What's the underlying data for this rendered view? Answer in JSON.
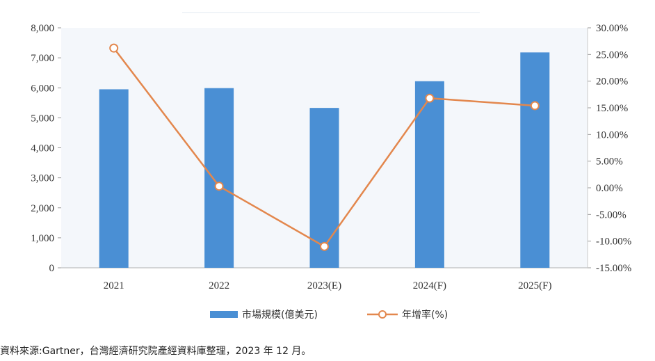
{
  "chart_data": {
    "type": "bar",
    "categories": [
      "2021",
      "2022",
      "2023(E)",
      "2024(F)",
      "2025(F)"
    ],
    "series": [
      {
        "name": "市場規模(億美元)",
        "type": "bar",
        "axis": "left",
        "values": [
          5950,
          5990,
          5330,
          6220,
          7180
        ]
      },
      {
        "name": "年增率(%)",
        "type": "line",
        "axis": "right",
        "values": [
          26.2,
          0.3,
          -11.0,
          16.8,
          15.4
        ]
      }
    ],
    "y_left": {
      "lim": [
        0,
        8000
      ],
      "ticks": [
        "0",
        "1,000",
        "2,000",
        "3,000",
        "4,000",
        "5,000",
        "6,000",
        "7,000",
        "8,000"
      ]
    },
    "y_right": {
      "lim": [
        -15,
        30
      ],
      "ticks": [
        "-15.00%",
        "-10.00%",
        "-5.00%",
        "0.00%",
        "5.00%",
        "10.00%",
        "15.00%",
        "20.00%",
        "25.00%",
        "30.00%"
      ]
    },
    "legend_position": "bottom",
    "grid": false,
    "colors": {
      "bar": "#4a8fd4",
      "line": "#e3874d",
      "marker_fill": "#ffffff"
    }
  },
  "source_note": "資料來源:Gartner，台灣經濟研究院產經資料庫整理，2023 年 12 月。"
}
